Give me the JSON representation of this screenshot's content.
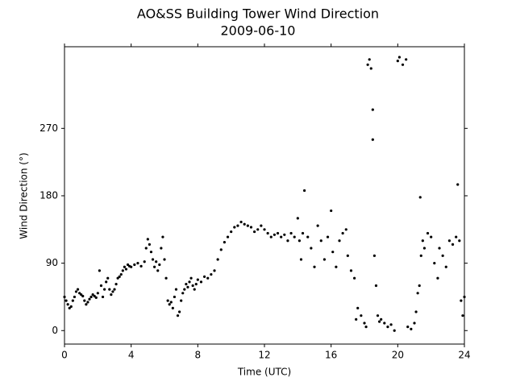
{
  "chart_data": {
    "type": "scatter",
    "title": "AO&SS Building Tower Wind Direction",
    "subtitle": "2009-06-10",
    "x_label": "Time (UTC)",
    "y_label": "Wind Direction (°)",
    "color": "#000000",
    "xlim": [
      0,
      24
    ],
    "xticks": [
      0,
      4,
      8,
      12,
      16,
      20,
      24
    ],
    "ylim": [
      -18,
      379
    ],
    "yticks": [
      0,
      90,
      180,
      270
    ],
    "x": [
      0,
      0.1,
      0.2,
      0.3,
      0.4,
      0.5,
      0.6,
      0.7,
      0.8,
      0.9,
      1.0,
      1.1,
      1.2,
      1.3,
      1.4,
      1.5,
      1.6,
      1.7,
      1.8,
      1.9,
      2.0,
      2.1,
      2.2,
      2.3,
      2.4,
      2.5,
      2.6,
      2.7,
      2.8,
      2.9,
      3.0,
      3.1,
      3.2,
      3.3,
      3.4,
      3.5,
      3.6,
      3.7,
      3.8,
      3.9,
      4.0,
      4.2,
      4.4,
      4.6,
      4.8,
      4.9,
      5.0,
      5.1,
      5.2,
      5.3,
      5.4,
      5.5,
      5.6,
      5.7,
      5.8,
      5.9,
      6.0,
      6.1,
      6.2,
      6.3,
      6.4,
      6.5,
      6.6,
      6.7,
      6.8,
      6.9,
      7.0,
      7.1,
      7.2,
      7.3,
      7.4,
      7.5,
      7.6,
      7.7,
      7.8,
      7.9,
      8.0,
      8.2,
      8.4,
      8.6,
      8.8,
      9.0,
      9.2,
      9.4,
      9.6,
      9.8,
      10.0,
      10.2,
      10.4,
      10.6,
      10.8,
      11.0,
      11.2,
      11.4,
      11.6,
      11.8,
      12.0,
      12.2,
      12.4,
      12.6,
      12.8,
      13.0,
      13.2,
      13.4,
      13.6,
      13.8,
      14.0,
      14.1,
      14.2,
      14.3,
      14.4,
      14.6,
      14.8,
      15.0,
      15.2,
      15.4,
      15.6,
      15.8,
      16.0,
      16.1,
      16.3,
      16.5,
      16.7,
      16.9,
      17.0,
      17.2,
      17.4,
      17.5,
      17.6,
      17.8,
      18.0,
      18.1,
      18.2,
      18.3,
      18.4,
      18.5,
      18.5,
      18.6,
      18.7,
      18.8,
      18.9,
      19.0,
      19.2,
      19.4,
      19.6,
      19.8,
      20.0,
      20.1,
      20.3,
      20.5,
      20.6,
      20.8,
      21.0,
      21.1,
      21.2,
      21.3,
      21.35,
      21.4,
      21.5,
      21.6,
      21.8,
      22.0,
      22.2,
      22.4,
      22.5,
      22.7,
      22.9,
      23.1,
      23.3,
      23.5,
      23.6,
      23.7,
      23.8,
      23.9,
      24.0
    ],
    "values": [
      45,
      40,
      35,
      30,
      32,
      40,
      45,
      52,
      55,
      50,
      48,
      46,
      40,
      35,
      38,
      42,
      45,
      48,
      46,
      44,
      50,
      80,
      60,
      45,
      55,
      65,
      70,
      55,
      48,
      52,
      55,
      62,
      70,
      72,
      75,
      80,
      85,
      82,
      88,
      86,
      85,
      88,
      90,
      86,
      92,
      110,
      122,
      115,
      105,
      95,
      85,
      92,
      80,
      88,
      110,
      125,
      95,
      70,
      40,
      35,
      38,
      30,
      45,
      55,
      20,
      25,
      40,
      50,
      55,
      62,
      58,
      65,
      70,
      60,
      55,
      62,
      68,
      65,
      72,
      70,
      75,
      80,
      95,
      108,
      118,
      125,
      132,
      138,
      140,
      145,
      142,
      140,
      138,
      132,
      135,
      140,
      135,
      130,
      125,
      128,
      130,
      125,
      128,
      120,
      130,
      125,
      150,
      120,
      95,
      130,
      187,
      125,
      110,
      85,
      140,
      120,
      95,
      125,
      160,
      105,
      85,
      120,
      130,
      135,
      100,
      80,
      70,
      15,
      30,
      20,
      10,
      5,
      355,
      362,
      350,
      295,
      255,
      100,
      60,
      20,
      12,
      15,
      10,
      5,
      8,
      0,
      360,
      365,
      355,
      362,
      5,
      2,
      10,
      25,
      50,
      60,
      178,
      100,
      120,
      110,
      130,
      125,
      90,
      70,
      110,
      100,
      85,
      120,
      115,
      125,
      195,
      120,
      40,
      20,
      45
    ]
  }
}
